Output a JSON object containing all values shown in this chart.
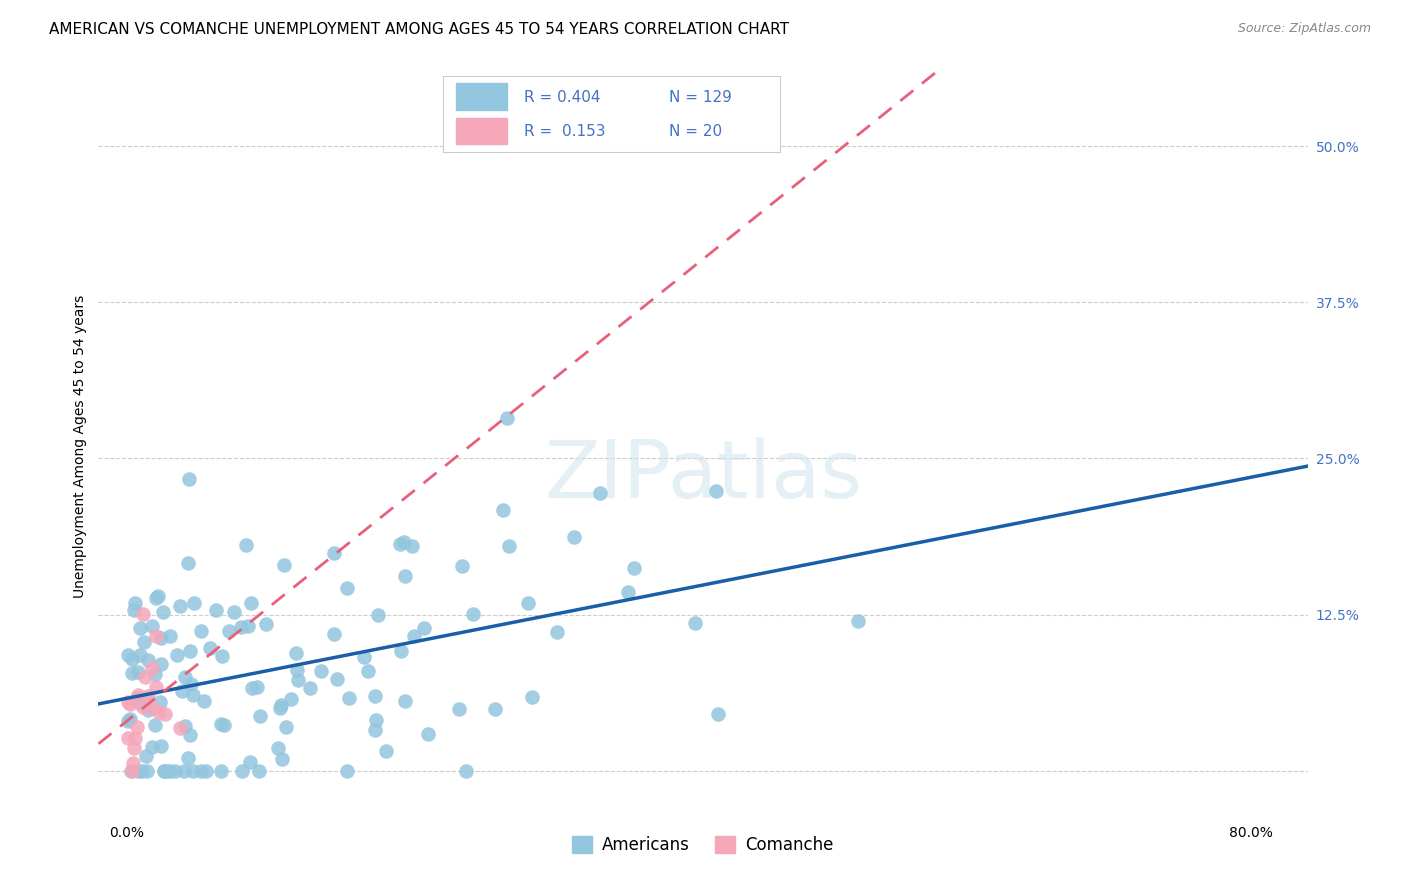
{
  "title": "AMERICAN VS COMANCHE UNEMPLOYMENT AMONG AGES 45 TO 54 YEARS CORRELATION CHART",
  "source": "Source: ZipAtlas.com",
  "ylabel": "Unemployment Among Ages 45 to 54 years",
  "xlim": [
    -0.02,
    0.84
  ],
  "ylim": [
    -0.04,
    0.56
  ],
  "xtick_positions": [
    0.0,
    0.8
  ],
  "xticklabels": [
    "0.0%",
    "80.0%"
  ],
  "ytick_positions": [
    0.0,
    0.125,
    0.25,
    0.375,
    0.5
  ],
  "ytick_labels": [
    "",
    "12.5%",
    "25.0%",
    "37.5%",
    "50.0%"
  ],
  "americans_R": 0.404,
  "americans_N": 129,
  "comanche_R": 0.153,
  "comanche_N": 20,
  "blue_color": "#92C5DE",
  "pink_color": "#F4A7B9",
  "blue_line_color": "#1A5EA8",
  "pink_line_color": "#E8607A",
  "grid_color": "#CCCCCC",
  "background_color": "#FFFFFF",
  "watermark_text": "ZIPatlas",
  "title_fontsize": 11,
  "axis_label_fontsize": 10,
  "tick_fontsize": 10,
  "legend_fontsize": 11
}
